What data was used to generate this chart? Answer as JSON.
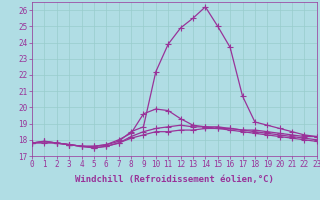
{
  "xlabel": "Windchill (Refroidissement éolien,°C)",
  "background_color": "#b0dde4",
  "line_color": "#993399",
  "grid_color": "#99cccc",
  "x_hours": [
    0,
    1,
    2,
    3,
    4,
    5,
    6,
    7,
    8,
    9,
    10,
    11,
    12,
    13,
    14,
    15,
    16,
    17,
    18,
    19,
    20,
    21,
    22,
    23
  ],
  "series": [
    [
      17.8,
      17.9,
      17.8,
      17.7,
      17.6,
      17.6,
      17.7,
      17.9,
      18.5,
      18.8,
      22.2,
      23.9,
      24.9,
      25.5,
      26.2,
      25.0,
      23.7,
      20.7,
      19.1,
      18.9,
      18.7,
      18.5,
      18.3,
      18.2
    ],
    [
      17.8,
      17.9,
      17.8,
      17.7,
      17.6,
      17.6,
      17.7,
      18.0,
      18.4,
      19.6,
      19.9,
      19.8,
      19.3,
      18.9,
      18.8,
      18.7,
      18.7,
      18.6,
      18.6,
      18.5,
      18.4,
      18.3,
      18.2,
      18.2
    ],
    [
      17.8,
      17.9,
      17.8,
      17.7,
      17.6,
      17.5,
      17.6,
      17.8,
      18.2,
      18.5,
      18.7,
      18.8,
      18.9,
      18.8,
      18.8,
      18.8,
      18.7,
      18.6,
      18.5,
      18.4,
      18.3,
      18.2,
      18.1,
      18.0
    ],
    [
      17.8,
      17.8,
      17.8,
      17.7,
      17.6,
      17.5,
      17.6,
      17.8,
      18.1,
      18.3,
      18.5,
      18.5,
      18.6,
      18.6,
      18.7,
      18.7,
      18.6,
      18.5,
      18.4,
      18.3,
      18.2,
      18.1,
      18.0,
      17.9
    ]
  ],
  "xlim": [
    0,
    23
  ],
  "ylim": [
    17.0,
    26.5
  ],
  "yticks": [
    17,
    18,
    19,
    20,
    21,
    22,
    23,
    24,
    25,
    26
  ],
  "xtick_labels": [
    "0",
    "1",
    "2",
    "3",
    "4",
    "5",
    "6",
    "7",
    "8",
    "9",
    "10",
    "11",
    "12",
    "13",
    "14",
    "15",
    "16",
    "17",
    "18",
    "19",
    "20",
    "21",
    "22",
    "23"
  ],
  "marker": "+",
  "markersize": 4,
  "linewidth": 0.9,
  "xlabel_fontsize": 6.5,
  "tick_fontsize": 5.5
}
